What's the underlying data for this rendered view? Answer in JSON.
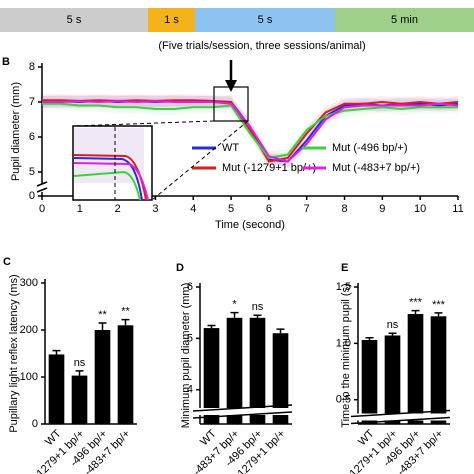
{
  "timeline": {
    "segments": [
      {
        "label": "5 s",
        "color": "#cccccc"
      },
      {
        "label": "1 s",
        "color": "#f5b31b"
      },
      {
        "label": "5 s",
        "color": "#8ec2f0"
      },
      {
        "label": "5 min",
        "color": "#9fd08a"
      }
    ],
    "note": "(Five trials/session, three sessions/animal)"
  },
  "chart_data": [
    {
      "type": "line",
      "panel": "B",
      "xlabel": "Time (second)",
      "ylabel": "Pupil diameter (mm)",
      "x": [
        0,
        0.5,
        1,
        1.5,
        2,
        2.5,
        3,
        3.5,
        4,
        4.5,
        5,
        5.5,
        6,
        6.5,
        7,
        7.5,
        8,
        8.5,
        9,
        9.5,
        10,
        10.5,
        11
      ],
      "series": [
        {
          "name": "WT",
          "color": "#2b2bd6",
          "values": [
            7.0,
            7.02,
            7.0,
            7.03,
            7.0,
            7.02,
            7.0,
            7.02,
            7.0,
            7.0,
            7.0,
            6.3,
            5.35,
            5.3,
            5.9,
            6.6,
            6.9,
            6.95,
            6.9,
            6.95,
            6.95,
            6.9,
            6.95
          ]
        },
        {
          "name": "Mut (-1279+1 bp/+)",
          "color": "#d62020",
          "values": [
            7.05,
            7.05,
            7.03,
            7.05,
            7.03,
            7.05,
            7.03,
            7.05,
            7.05,
            7.03,
            7.0,
            6.2,
            5.3,
            5.4,
            6.1,
            6.7,
            6.95,
            6.95,
            7.0,
            6.95,
            7.0,
            6.95,
            7.0
          ]
        },
        {
          "name": "Mut (-496 bp/+)",
          "color": "#3bd13b",
          "values": [
            6.95,
            6.95,
            6.9,
            6.9,
            6.85,
            6.85,
            6.8,
            6.8,
            6.85,
            6.85,
            6.9,
            6.1,
            5.4,
            5.5,
            6.2,
            6.6,
            6.75,
            6.8,
            6.85,
            6.8,
            6.85,
            6.85,
            6.85
          ]
        },
        {
          "name": "Mut (-483+7 bp/+)",
          "color": "#e020e0",
          "values": [
            7.0,
            7.0,
            7.02,
            7.0,
            7.02,
            7.0,
            7.02,
            7.0,
            7.0,
            7.0,
            6.95,
            6.3,
            5.45,
            5.3,
            5.8,
            6.5,
            6.85,
            6.9,
            6.9,
            6.9,
            6.9,
            6.95,
            6.9
          ]
        }
      ],
      "xlim": [
        0,
        11
      ],
      "xticks": [
        0,
        1,
        2,
        3,
        4,
        5,
        6,
        7,
        8,
        9,
        10,
        11
      ],
      "ylim": [
        4.6,
        8
      ],
      "yticks": [
        5,
        6,
        7,
        8
      ],
      "ybreak_tick": 0
    },
    {
      "type": "bar",
      "panel": "C",
      "ylabel": "Pupillary light reflex latency (ms)",
      "categories": [
        "WT",
        "-1279+1 bp/+",
        "-496 bp/+",
        "-483+7 bp/+"
      ],
      "values": [
        148,
        103,
        200,
        210
      ],
      "errors": [
        8,
        10,
        15,
        12
      ],
      "annotations": [
        null,
        "ns",
        "**",
        "**"
      ],
      "color": "#000000",
      "ylim": [
        0,
        300
      ],
      "yticks": [
        0,
        100,
        200,
        300
      ],
      "axis_break": false
    },
    {
      "type": "bar",
      "panel": "D",
      "ylabel": "Minimum pupil diameter (mm)",
      "categories": [
        "WT",
        "-483+7 bp/+",
        "-496 bp/+",
        "-1279+1 bp/+"
      ],
      "values": [
        5.2,
        5.4,
        5.4,
        5.1
      ],
      "errors": [
        0.05,
        0.1,
        0.05,
        0.08
      ],
      "annotations": [
        null,
        "*",
        "ns",
        null
      ],
      "color": "#000000",
      "ylim": [
        3.8,
        6
      ],
      "yticks": [
        4,
        5,
        6
      ],
      "axis_break": true
    },
    {
      "type": "bar",
      "panel": "E",
      "ylabel": "Time to the minimum pupil (s)",
      "categories": [
        "WT",
        "-1279+1 bp/+",
        "-496 bp/+",
        "-483+7 bp/+"
      ],
      "values": [
        1.03,
        1.07,
        1.26,
        1.24
      ],
      "errors": [
        0.02,
        0.02,
        0.03,
        0.03
      ],
      "annotations": [
        null,
        "ns",
        "***",
        "***"
      ],
      "color": "#000000",
      "ylim": [
        0.4,
        1.5
      ],
      "yticks": [
        {
          "value": 0.5,
          "label": "0.5"
        },
        {
          "value": 1.0,
          "label": "1.0"
        },
        {
          "value": 1.5,
          "label": "1.5"
        }
      ],
      "axis_break": true
    }
  ]
}
